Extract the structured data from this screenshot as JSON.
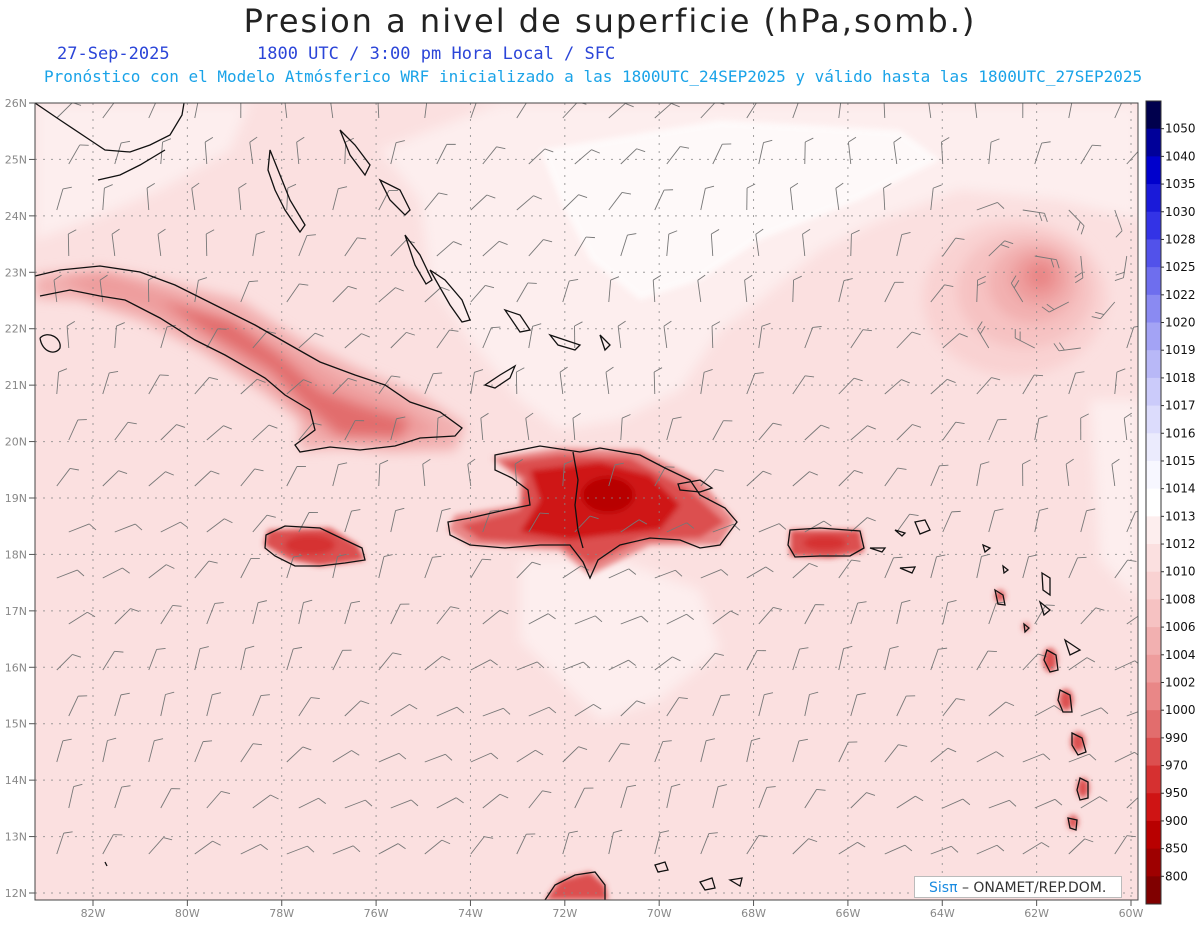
{
  "header": {
    "title": "Presion a nivel de superficie (hPa,somb.)",
    "date": "27-Sep-2025",
    "time": "1800 UTC / 3:00 pm Hora Local / SFC",
    "subtitle": "Pronóstico con el Modelo Atmósferico WRF inicializado a las 1800UTC_24SEP2025 y válido hasta las  1800UTC_27SEP2025"
  },
  "axes": {
    "lon_labels": [
      "82W",
      "80W",
      "78W",
      "76W",
      "74W",
      "72W",
      "70W",
      "68W",
      "66W",
      "64W",
      "62W",
      "60W"
    ],
    "lat_labels": [
      "26N",
      "25N",
      "24N",
      "23N",
      "22N",
      "21N",
      "20N",
      "19N",
      "18N",
      "17N",
      "16N",
      "15N",
      "14N",
      "13N",
      "12N"
    ]
  },
  "colorbar": {
    "levels": [
      "1050",
      "1040",
      "1035",
      "1030",
      "1028",
      "1025",
      "1022",
      "1020",
      "1019",
      "1018",
      "1017",
      "1016",
      "1015",
      "1014",
      "1013",
      "1012",
      "1010",
      "1008",
      "1006",
      "1004",
      "1002",
      "1000",
      "990",
      "970",
      "950",
      "900",
      "850",
      "800"
    ],
    "colors": [
      "#00004d",
      "#000099",
      "#0000cc",
      "#1a1ad9",
      "#3333e6",
      "#5252ea",
      "#6e6eee",
      "#8a8af2",
      "#a3a3f5",
      "#b8b8f7",
      "#cbcbfa",
      "#dcdcfc",
      "#ebebfd",
      "#f7f7ff",
      "#ffffff",
      "#fdeeee",
      "#fbe0e0",
      "#f9d2d2",
      "#f6c2c2",
      "#f2b0b0",
      "#ee9d9d",
      "#e98787",
      "#e26d6d",
      "#dc4f4f",
      "#d63030",
      "#cf1414",
      "#b80000",
      "#9e0000",
      "#800000"
    ]
  },
  "credit": {
    "brand": "Sisπ",
    "text": "– ONAMET/REP.DOM."
  }
}
